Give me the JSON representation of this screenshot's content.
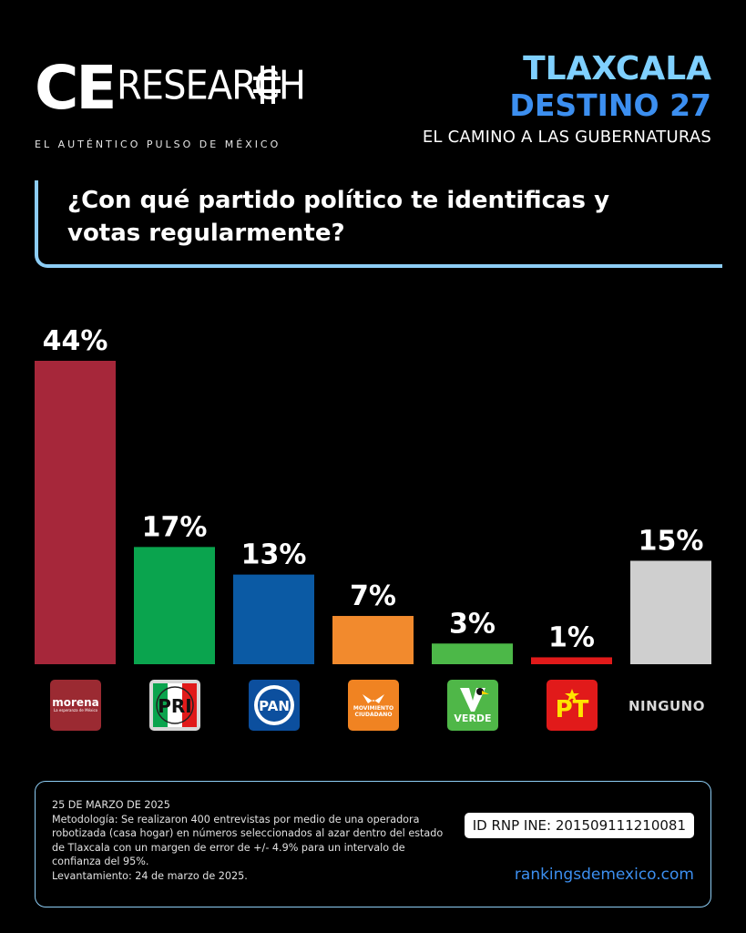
{
  "brand": {
    "ce": "CE",
    "research": "RESEARCH",
    "tagline": "EL AUTÉNTICO PULSO DE MÉXICO"
  },
  "header": {
    "state": "TLAXCALA",
    "destino": "DESTINO 27",
    "subtitle": "EL CAMINO A LAS GUBERNATURAS"
  },
  "question": "¿Con qué partido político te identificas y votas regularmente?",
  "chart_data": {
    "type": "bar",
    "categories": [
      "morena",
      "PRI",
      "PAN",
      "MOVIMIENTO CIUDADANO",
      "VERDE",
      "PT",
      "NINGUNO"
    ],
    "values": [
      44,
      17,
      13,
      7,
      3,
      1,
      15
    ],
    "value_labels": [
      "44%",
      "17%",
      "13%",
      "7%",
      "3%",
      "1%",
      "15%"
    ],
    "colors": [
      "#a6273a",
      "#0aa44e",
      "#0b5aa4",
      "#f28a2d",
      "#4cb848",
      "#e11a1a",
      "#cfcfcf"
    ],
    "ylim": [
      0,
      44
    ],
    "grid": false,
    "title": "",
    "xlabel": "",
    "ylabel": ""
  },
  "logos": {
    "morena": {
      "word": "morena",
      "slogan": "La esperanza de México",
      "icon": "morena-logo"
    },
    "pri": {
      "text": "PRI",
      "icon": "pri-logo"
    },
    "pan": {
      "text": "PAN",
      "icon": "pan-logo"
    },
    "mc": {
      "line1": "MOVIMIENTO",
      "line2": "CIUDADANO",
      "icon": "movimiento-ciudadano-logo"
    },
    "verde": {
      "text": "VERDE",
      "icon": "verde-logo"
    },
    "pt": {
      "text": "PT",
      "icon": "pt-logo"
    },
    "ninguno": "NINGUNO"
  },
  "footer": {
    "date": "25 DE MARZO DE 2025",
    "methodology": "Metodología: Se realizaron 400 entrevistas por medio de una operadora robotizada (casa hogar) en números seleccionados al azar dentro del estado de Tlaxcala con un margen de error de +/- 4.9% para un intervalo de confianza del 95%.",
    "fieldwork": "Levantamiento: 24 de marzo de 2025.",
    "rnp_id": "ID RNP INE: 201509111210081",
    "url": "rankingsdemexico.com"
  }
}
